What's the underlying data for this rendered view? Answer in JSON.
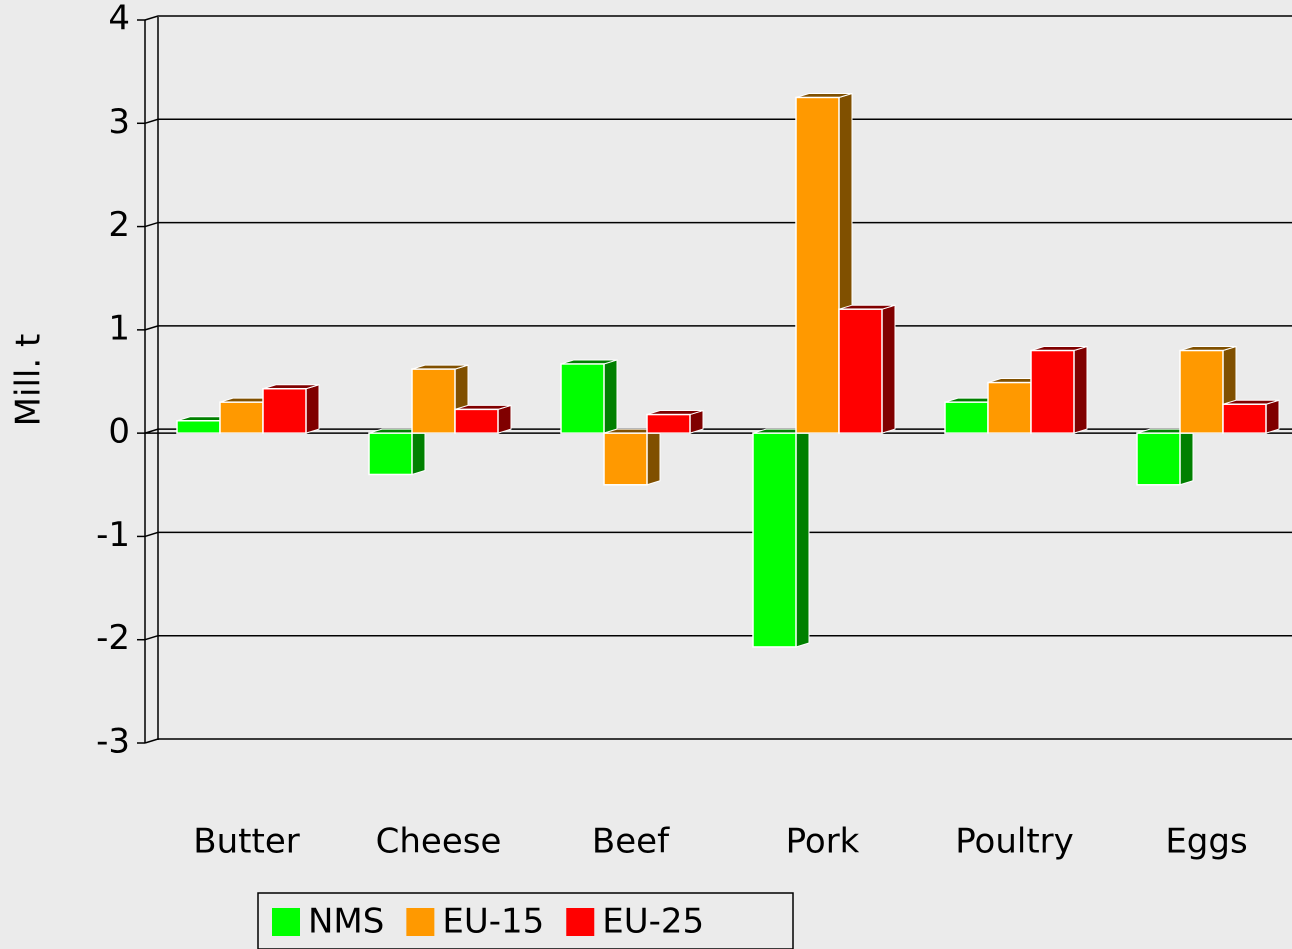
{
  "chart_data": {
    "type": "bar3d",
    "y_label": "Mill. t",
    "categories": [
      "Butter",
      "Cheese",
      "Beef",
      "Pork",
      "Poultry",
      "Eggs"
    ],
    "series": [
      {
        "name": "NMS",
        "color": "#00ff00",
        "side_color": "#008000",
        "values": [
          0.12,
          -0.4,
          0.67,
          -2.07,
          0.3,
          -0.5
        ]
      },
      {
        "name": "EU-15",
        "color": "#ff9900",
        "side_color": "#805000",
        "values": [
          0.3,
          0.62,
          -0.5,
          3.25,
          0.49,
          0.8
        ]
      },
      {
        "name": "EU-25",
        "color": "#ff0000",
        "side_color": "#800000",
        "values": [
          0.43,
          0.23,
          0.18,
          1.2,
          0.8,
          0.28
        ]
      }
    ],
    "ylim": [
      -3,
      4
    ],
    "yticks": [
      -3,
      -2,
      -1,
      0,
      1,
      2,
      3,
      4
    ],
    "grid": true,
    "legend": "bottom"
  }
}
